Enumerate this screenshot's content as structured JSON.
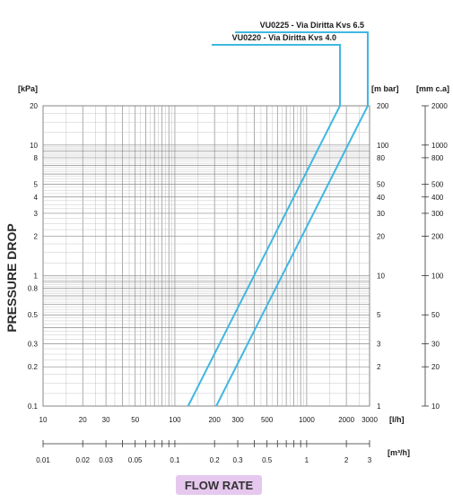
{
  "chart_data": {
    "type": "line",
    "xlabel": "FLOW RATE",
    "ylabel": "PRESSURE DROP",
    "x_scale": "log",
    "y_scale": "log",
    "xlim": [
      10,
      3000
    ],
    "ylim": [
      0.1,
      20
    ],
    "grid": true,
    "primary_x_unit": "[l/h]",
    "secondary_x_unit": "[m³/h]",
    "primary_y_unit": "[kPa]",
    "right_y_units": [
      "[m bar]",
      "[mm c.a]"
    ],
    "x_ticks": [
      "10",
      "20",
      "30",
      "50",
      "100",
      "200",
      "300",
      "500",
      "1000",
      "2000",
      "3000"
    ],
    "x_ticks_m3h": [
      "0.01",
      "0.02",
      "0.03",
      "0.05",
      "0.1",
      "0.2",
      "0.3",
      "0.5",
      "1",
      "2",
      "3"
    ],
    "y_ticks_kpa": [
      "20",
      "10",
      "8",
      "5",
      "4",
      "3",
      "2",
      "1",
      "0.8",
      "0.5",
      "0.3",
      "0.2",
      "0.1"
    ],
    "y_ticks_mbar": [
      "200",
      "100",
      "80",
      "50",
      "40",
      "30",
      "20",
      "10",
      "5",
      "3",
      "2",
      "1"
    ],
    "y_ticks_mmca": [
      "2000",
      "1000",
      "800",
      "500",
      "400",
      "300",
      "200",
      "100",
      "50",
      "30",
      "20",
      "10"
    ],
    "series": [
      {
        "name": "VU0220 - Via Diritta Kvs 4.0",
        "kvs": 4.0,
        "color": "#3fb8e0",
        "x": [
          126,
          1789
        ],
        "y": [
          0.1,
          20
        ]
      },
      {
        "name": "VU0225 - Via Diritta Kvs 6.5",
        "kvs": 6.5,
        "color": "#3fb8e0",
        "x": [
          206,
          2907
        ],
        "y": [
          0.1,
          20
        ]
      }
    ]
  }
}
